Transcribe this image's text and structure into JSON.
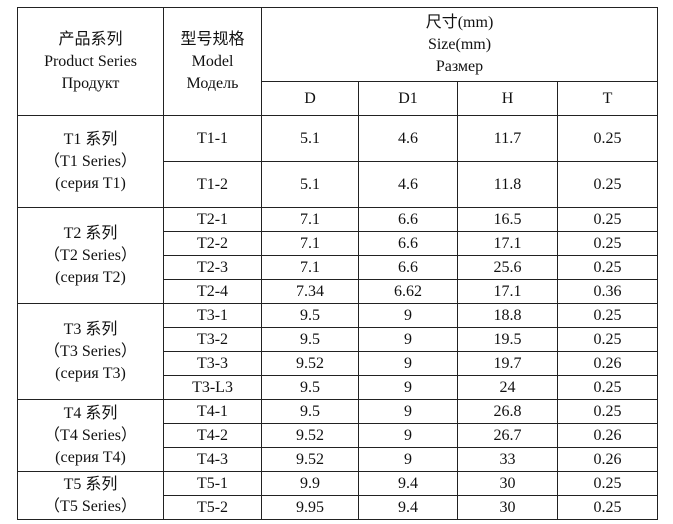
{
  "headers": {
    "series": [
      "产品系列",
      "Product Series",
      "Продукт"
    ],
    "model": [
      "型号规格",
      "Model",
      "Модель"
    ],
    "size": [
      "尺寸(mm)",
      "Size(mm)",
      "Размер"
    ],
    "cols": [
      "D",
      "D1",
      "H",
      "T"
    ]
  },
  "groups": [
    {
      "series": [
        "T1 系列",
        "（T1 Series）",
        "(серия T1)"
      ],
      "rows": [
        {
          "model": "T1-1",
          "d": "5.1",
          "d1": "4.6",
          "h": "11.7",
          "t": "0.25"
        },
        {
          "model": "T1-2",
          "d": "5.1",
          "d1": "4.6",
          "h": "11.8",
          "t": "0.25"
        }
      ]
    },
    {
      "series": [
        "T2 系列",
        "（T2 Series）",
        "(серия T2)"
      ],
      "rows": [
        {
          "model": "T2-1",
          "d": "7.1",
          "d1": "6.6",
          "h": "16.5",
          "t": "0.25"
        },
        {
          "model": "T2-2",
          "d": "7.1",
          "d1": "6.6",
          "h": "17.1",
          "t": "0.25"
        },
        {
          "model": "T2-3",
          "d": "7.1",
          "d1": "6.6",
          "h": "25.6",
          "t": "0.25"
        },
        {
          "model": "T2-4",
          "d": "7.34",
          "d1": "6.62",
          "h": "17.1",
          "t": "0.36"
        }
      ]
    },
    {
      "series": [
        "T3 系列",
        "（T3 Series）",
        "(серия T3)"
      ],
      "rows": [
        {
          "model": "T3-1",
          "d": "9.5",
          "d1": "9",
          "h": "18.8",
          "t": "0.25"
        },
        {
          "model": "T3-2",
          "d": "9.5",
          "d1": "9",
          "h": "19.5",
          "t": "0.25"
        },
        {
          "model": "T3-3",
          "d": "9.52",
          "d1": "9",
          "h": "19.7",
          "t": "0.26"
        },
        {
          "model": "T3-L3",
          "d": "9.5",
          "d1": "9",
          "h": "24",
          "t": "0.25"
        }
      ]
    },
    {
      "series": [
        "T4 系列",
        "（T4 Series）",
        "(серия T4)"
      ],
      "rows": [
        {
          "model": "T4-1",
          "d": "9.5",
          "d1": "9",
          "h": "26.8",
          "t": "0.25"
        },
        {
          "model": "T4-2",
          "d": "9.52",
          "d1": "9",
          "h": "26.7",
          "t": "0.26"
        },
        {
          "model": "T4-3",
          "d": "9.52",
          "d1": "9",
          "h": "33",
          "t": "0.26"
        }
      ]
    },
    {
      "series": [
        "T5 系列",
        "（T5 Series）"
      ],
      "rows": [
        {
          "model": "T5-1",
          "d": "9.9",
          "d1": "9.4",
          "h": "30",
          "t": "0.25"
        },
        {
          "model": "T5-2",
          "d": "9.95",
          "d1": "9.4",
          "h": "30",
          "t": "0.25"
        }
      ]
    }
  ]
}
